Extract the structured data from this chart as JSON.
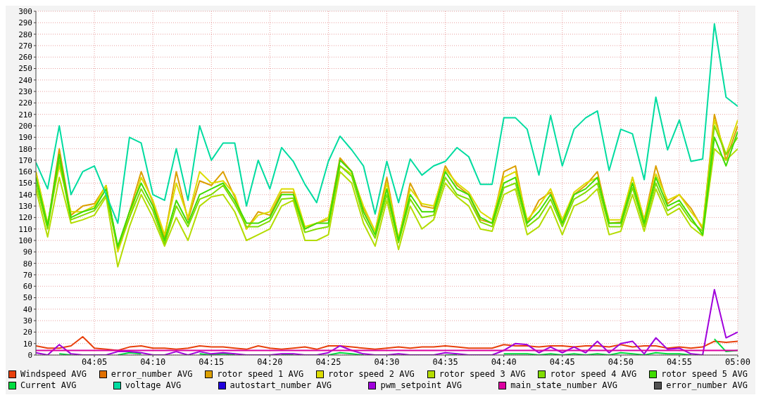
{
  "chart_data": {
    "type": "line",
    "x": [
      4,
      4.0167,
      4.0333,
      4.05,
      4.0667,
      4.0833,
      4.1,
      4.1167,
      4.1333,
      4.15,
      4.1667,
      4.1833,
      4.2,
      4.2167,
      4.2333,
      4.25,
      4.2667,
      4.2833,
      4.3,
      4.3167,
      4.3333,
      4.35,
      4.3667,
      4.3833,
      4.4,
      4.4167,
      4.4333,
      4.45,
      4.4667,
      4.4833,
      4.5,
      4.5167,
      4.5333,
      4.55,
      4.5667,
      4.5833,
      4.6,
      4.6167,
      4.6333,
      4.65,
      4.6667,
      4.6833,
      4.7,
      4.7167,
      4.7333,
      4.75,
      4.7667,
      4.7833,
      4.8,
      4.8167,
      4.8333,
      4.85,
      4.8667,
      4.8833,
      4.9,
      4.9167,
      4.9333,
      4.95,
      4.9667,
      4.9833,
      5
    ],
    "xlim": [
      4,
      5
    ],
    "xticks": [
      {
        "value": 4.0833,
        "label": "04:05"
      },
      {
        "value": 4.1667,
        "label": "04:10"
      },
      {
        "value": 4.25,
        "label": "04:15"
      },
      {
        "value": 4.3333,
        "label": "04:20"
      },
      {
        "value": 4.4167,
        "label": "04:25"
      },
      {
        "value": 4.5,
        "label": "04:30"
      },
      {
        "value": 4.5833,
        "label": "04:35"
      },
      {
        "value": 4.6667,
        "label": "04:40"
      },
      {
        "value": 4.75,
        "label": "04:45"
      },
      {
        "value": 4.8333,
        "label": "04:50"
      },
      {
        "value": 4.9167,
        "label": "04:55"
      },
      {
        "value": 5,
        "label": "05:00"
      }
    ],
    "ylim": [
      0,
      300
    ],
    "yticks": [
      0,
      10,
      20,
      30,
      40,
      50,
      60,
      70,
      80,
      90,
      100,
      110,
      120,
      130,
      140,
      150,
      160,
      170,
      180,
      190,
      200,
      210,
      220,
      230,
      240,
      250,
      260,
      270,
      280,
      290,
      300
    ],
    "grid": true,
    "legend": "bottom",
    "marker": "none",
    "line_style": "solid",
    "series": [
      {
        "name": "Windspeed AVG",
        "color": "#e8400c",
        "values": [
          8,
          6,
          6,
          8,
          16,
          6,
          5,
          4,
          7,
          8,
          6,
          6,
          5,
          6,
          8,
          7,
          7,
          6,
          5,
          8,
          6,
          5,
          6,
          7,
          5,
          8,
          8,
          7,
          6,
          5,
          6,
          7,
          6,
          7,
          7,
          8,
          7,
          6,
          6,
          6,
          9,
          8,
          8,
          7,
          8,
          8,
          7,
          8,
          8,
          7,
          9,
          7,
          8,
          8,
          6,
          7,
          6,
          7,
          12,
          11,
          12
        ]
      },
      {
        "name": "error_number AVG",
        "color": "#e07000",
        "values": [
          null,
          null,
          null,
          null,
          null,
          null,
          null,
          null,
          null,
          null,
          null,
          null,
          null,
          null,
          null,
          null,
          null,
          null,
          null,
          null,
          null,
          null,
          null,
          null,
          null,
          null,
          null,
          null,
          null,
          null,
          null,
          null,
          null,
          null,
          null,
          null,
          null,
          null,
          null,
          null,
          null,
          null,
          null,
          null,
          null,
          null,
          null,
          null,
          null,
          null,
          null,
          null,
          null,
          null,
          null,
          null,
          null,
          null,
          null,
          null,
          null
        ]
      },
      {
        "name": "rotor speed 1 AVG",
        "color": "#dca000",
        "values": [
          160,
          112,
          180,
          122,
          130,
          132,
          148,
          92,
          125,
          160,
          133,
          102,
          160,
          118,
          152,
          148,
          160,
          138,
          110,
          125,
          122,
          142,
          142,
          110,
          115,
          118,
          172,
          160,
          128,
          108,
          155,
          100,
          150,
          130,
          128,
          165,
          148,
          140,
          118,
          115,
          160,
          165,
          115,
          135,
          142,
          115,
          140,
          148,
          160,
          115,
          116,
          155,
          118,
          165,
          132,
          140,
          128,
          110,
          210,
          170,
          200
        ]
      },
      {
        "name": "rotor speed 2 AVG",
        "color": "#dcdc00",
        "values": [
          160,
          115,
          165,
          125,
          125,
          130,
          148,
          90,
          120,
          155,
          135,
          105,
          150,
          120,
          160,
          150,
          152,
          140,
          110,
          122,
          125,
          145,
          145,
          112,
          115,
          120,
          165,
          158,
          130,
          108,
          150,
          102,
          145,
          132,
          130,
          162,
          150,
          142,
          125,
          118,
          155,
          160,
          118,
          130,
          145,
          118,
          142,
          150,
          155,
          118,
          118,
          155,
          118,
          158,
          135,
          140,
          125,
          112,
          205,
          175,
          205
        ]
      },
      {
        "name": "rotor speed 3 AVG",
        "color": "#b4dc00",
        "values": [
          145,
          103,
          155,
          115,
          118,
          122,
          138,
          77,
          112,
          140,
          120,
          95,
          120,
          100,
          130,
          138,
          140,
          125,
          100,
          105,
          110,
          130,
          135,
          100,
          100,
          105,
          160,
          150,
          115,
          95,
          135,
          92,
          130,
          110,
          118,
          150,
          138,
          130,
          110,
          108,
          140,
          145,
          105,
          112,
          130,
          105,
          130,
          135,
          145,
          105,
          108,
          140,
          108,
          145,
          122,
          128,
          112,
          104,
          180,
          170,
          180
        ]
      },
      {
        "name": "rotor speed 4 AVG",
        "color": "#80dc00",
        "values": [
          150,
          110,
          170,
          118,
          122,
          126,
          140,
          93,
          120,
          145,
          126,
          97,
          130,
          112,
          136,
          140,
          148,
          132,
          112,
          112,
          117,
          136,
          137,
          107,
          110,
          112,
          165,
          156,
          121,
          102,
          140,
          98,
          136,
          120,
          122,
          155,
          140,
          136,
          116,
          112,
          146,
          150,
          112,
          120,
          136,
          112,
          136,
          142,
          150,
          112,
          112,
          146,
          112,
          150,
          126,
          132,
          117,
          108,
          200,
          175,
          190
        ]
      },
      {
        "name": "rotor speed 5 AVG",
        "color": "#40dc00",
        "values": [
          155,
          113,
          175,
          120,
          125,
          128,
          145,
          95,
          125,
          150,
          130,
          100,
          135,
          115,
          140,
          145,
          150,
          135,
          115,
          115,
          120,
          140,
          140,
          110,
          115,
          115,
          170,
          160,
          125,
          105,
          145,
          100,
          140,
          125,
          125,
          160,
          145,
          140,
          120,
          115,
          150,
          155,
          115,
          125,
          140,
          115,
          140,
          145,
          155,
          115,
          115,
          150,
          115,
          155,
          130,
          135,
          120,
          105,
          190,
          165,
          195
        ]
      },
      {
        "name": "Current AVG",
        "color": "#00dc40",
        "values": [
          null,
          null,
          1,
          0,
          null,
          null,
          null,
          0,
          2,
          1,
          null,
          null,
          null,
          null,
          1,
          0,
          1,
          0,
          null,
          null,
          null,
          0,
          0,
          null,
          null,
          0,
          2,
          1,
          0,
          null,
          null,
          null,
          null,
          null,
          null,
          0,
          0,
          null,
          null,
          null,
          1,
          1,
          1,
          0,
          1,
          0,
          1,
          0,
          1,
          0,
          2,
          1,
          0,
          2,
          1,
          1,
          0,
          null,
          14,
          3,
          4
        ]
      },
      {
        "name": "voltage AVG",
        "color": "#00dca0",
        "values": [
          168,
          145,
          200,
          140,
          160,
          165,
          140,
          115,
          190,
          185,
          140,
          135,
          180,
          135,
          200,
          170,
          185,
          185,
          130,
          170,
          145,
          181,
          169,
          149,
          133,
          169,
          191,
          179,
          165,
          123,
          169,
          133,
          171,
          157,
          165,
          169,
          181,
          173,
          149,
          149,
          207,
          207,
          197,
          157,
          209,
          165,
          197,
          207,
          213,
          161,
          197,
          193,
          153,
          225,
          179,
          205,
          169,
          171,
          289,
          225,
          217
        ]
      },
      {
        "name": "autostart_number AVG",
        "color": "#2000dc",
        "values": [
          null,
          null,
          null,
          null,
          null,
          null,
          null,
          null,
          null,
          null,
          null,
          null,
          null,
          null,
          null,
          null,
          null,
          null,
          null,
          null,
          null,
          null,
          null,
          null,
          null,
          null,
          null,
          null,
          null,
          null,
          null,
          null,
          null,
          null,
          null,
          null,
          null,
          null,
          null,
          null,
          null,
          null,
          null,
          null,
          null,
          null,
          null,
          null,
          null,
          null,
          null,
          null,
          null,
          null,
          null,
          null,
          null,
          null,
          null,
          null,
          null
        ]
      },
      {
        "name": "pwm_setpoint AVG",
        "color": "#a000dc",
        "values": [
          2,
          0,
          9,
          1,
          0,
          0,
          0,
          3,
          3,
          2,
          0,
          0,
          3,
          0,
          3,
          1,
          2,
          1,
          0,
          0,
          0,
          1,
          1,
          0,
          0,
          2,
          8,
          4,
          1,
          0,
          0,
          1,
          0,
          0,
          0,
          2,
          1,
          0,
          0,
          0,
          4,
          10,
          9,
          2,
          7,
          2,
          7,
          2,
          12,
          2,
          10,
          12,
          1,
          15,
          5,
          6,
          1,
          0,
          57,
          15,
          20
        ]
      },
      {
        "name": "main_state_number AVG",
        "color": "#dc00a0",
        "values": [
          4,
          4,
          4,
          4,
          4,
          4,
          4,
          4,
          4,
          4,
          4,
          4,
          4,
          4,
          4,
          4,
          4,
          4,
          4,
          4,
          4,
          4,
          4,
          4,
          4,
          4,
          4,
          4,
          4,
          4,
          4,
          4,
          4,
          4,
          4,
          4,
          4,
          4,
          4,
          4,
          4,
          4,
          4,
          4,
          4,
          4,
          4,
          4,
          4,
          4,
          4,
          4,
          4,
          4,
          4,
          4,
          4,
          4,
          4,
          4,
          4
        ]
      },
      {
        "name": "error_number AVG",
        "color": "#505050",
        "values": [
          null,
          null,
          null,
          null,
          null,
          null,
          null,
          null,
          null,
          null,
          null,
          null,
          null,
          null,
          null,
          null,
          null,
          null,
          null,
          null,
          null,
          null,
          null,
          null,
          null,
          null,
          null,
          null,
          null,
          null,
          null,
          null,
          null,
          null,
          null,
          null,
          null,
          null,
          null,
          null,
          null,
          null,
          null,
          null,
          null,
          null,
          null,
          null,
          null,
          null,
          null,
          null,
          null,
          null,
          null,
          null,
          null,
          null,
          null,
          null,
          null
        ]
      }
    ]
  }
}
